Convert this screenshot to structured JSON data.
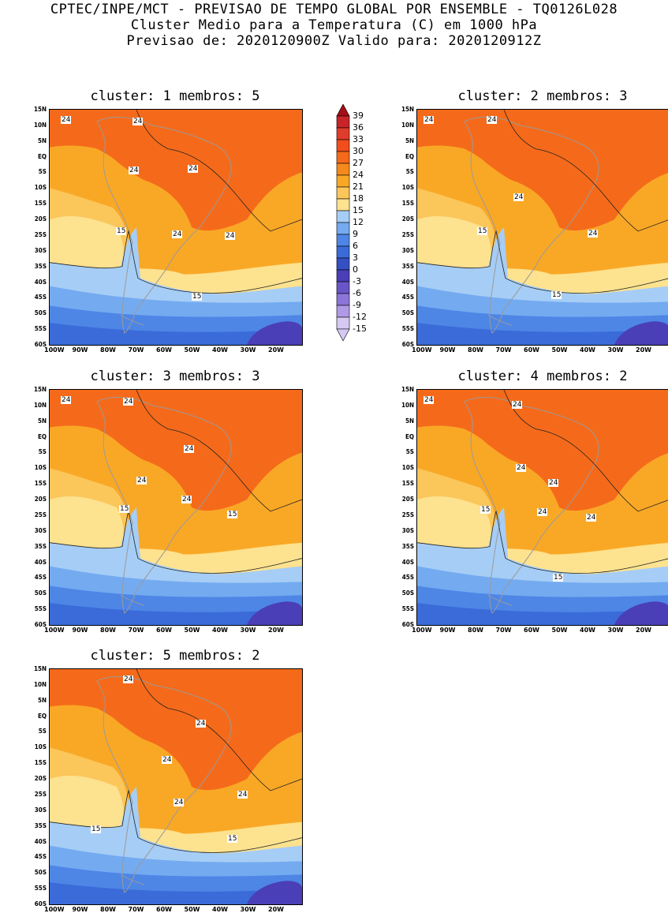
{
  "header": {
    "line1": "CPTEC/INPE/MCT - PREVISAO DE TEMPO GLOBAL POR ENSEMBLE - TQ0126L028",
    "line2": "Cluster Medio para a Temperatura (C) em 1000 hPa",
    "line3": "Previsao de: 2020120900Z   Valido para: 2020120912Z"
  },
  "axes": {
    "lat_labels": [
      "15N",
      "10N",
      "5N",
      "EQ",
      "5S",
      "10S",
      "15S",
      "20S",
      "25S",
      "30S",
      "35S",
      "40S",
      "45S",
      "50S",
      "55S",
      "60S"
    ],
    "lon_labels": [
      "100W",
      "90W",
      "80W",
      "70W",
      "60W",
      "50W",
      "40W",
      "30W",
      "20W"
    ]
  },
  "colorbar": {
    "levels": [
      "39",
      "36",
      "33",
      "30",
      "27",
      "24",
      "21",
      "18",
      "15",
      "12",
      "9",
      "6",
      "3",
      "0",
      "-3",
      "-6",
      "-9",
      "-12",
      "-15"
    ],
    "colors": [
      "#a50f15",
      "#c8242a",
      "#e03c2c",
      "#f04e1c",
      "#f56a1a",
      "#f58a1c",
      "#f9a826",
      "#fbc65a",
      "#fde28f",
      "#a6cdf5",
      "#74aaf0",
      "#4e86e6",
      "#3a6bd8",
      "#3550c2",
      "#4a3fb6",
      "#6a55c8",
      "#8c74d8",
      "#b09ae6",
      "#d6c8f2"
    ]
  },
  "clusters": [
    {
      "title": "cluster: 1   membros: 5",
      "contour_labels": [
        "24",
        "24",
        "24",
        "24",
        "24",
        "24",
        "15",
        "15"
      ]
    },
    {
      "title": "cluster: 2   membros: 3",
      "contour_labels": [
        "24",
        "24",
        "24",
        "24",
        "15",
        "15"
      ]
    },
    {
      "title": "cluster: 3   membros: 3",
      "contour_labels": [
        "24",
        "24",
        "24",
        "24",
        "24",
        "15",
        "15"
      ]
    },
    {
      "title": "cluster: 4   membros: 2",
      "contour_labels": [
        "24",
        "24",
        "24",
        "24",
        "24",
        "24",
        "15",
        "15"
      ]
    },
    {
      "title": "cluster: 5   membros: 2",
      "contour_labels": [
        "24",
        "24",
        "24",
        "24",
        "24",
        "15",
        "15"
      ]
    }
  ]
}
